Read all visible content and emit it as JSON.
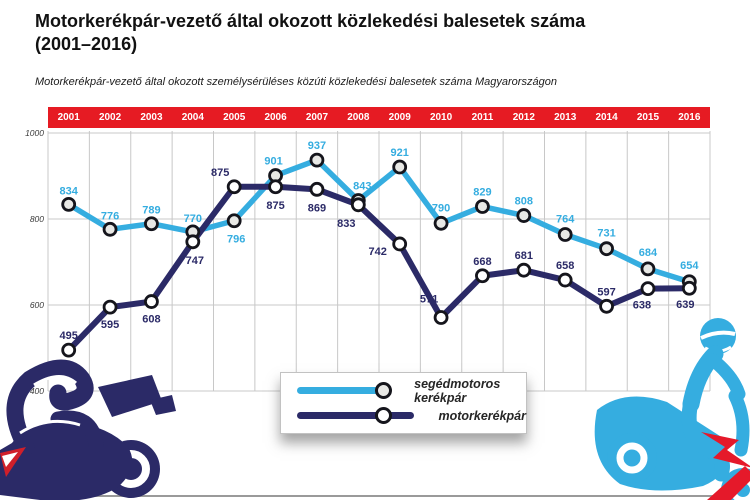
{
  "header": {
    "title_line1": "Motorkerékpár-vezető által okozott közlekedési balesetek száma",
    "title_line2": "(2001–2016)",
    "subtitle": "Motorkerékpár-vezető által okozott személysérüléses közúti közlekedési balesetek száma Magyarországon"
  },
  "chart_data": {
    "type": "line",
    "title": "Motorkerékpár-vezető által okozott közlekedési balesetek száma (2001–2016)",
    "categories": [
      "2001",
      "2002",
      "2003",
      "2004",
      "2005",
      "2006",
      "2007",
      "2008",
      "2009",
      "2010",
      "2011",
      "2012",
      "2013",
      "2014",
      "2015",
      "2016"
    ],
    "series": [
      {
        "name": "segédmotoros kerékpár",
        "color": "#35ade0",
        "marker_fill": "#e8e8e5",
        "line_width": 5.5,
        "values": [
          834,
          776,
          789,
          770,
          796,
          901,
          937,
          843,
          921,
          790,
          829,
          808,
          764,
          731,
          684,
          654
        ],
        "label_offsets": [
          [
            0,
            -10
          ],
          [
            0,
            -10
          ],
          [
            0,
            -10
          ],
          [
            0,
            -10
          ],
          [
            2,
            22
          ],
          [
            -2,
            -11
          ],
          [
            0,
            -11
          ],
          [
            4,
            -11
          ],
          [
            0,
            -11
          ],
          [
            0,
            -12
          ],
          [
            0,
            -11
          ],
          [
            0,
            -11
          ],
          [
            0,
            -12
          ],
          [
            0,
            -12
          ],
          [
            0,
            -13
          ],
          [
            0,
            -13
          ]
        ]
      },
      {
        "name": "motorkerékpár",
        "color": "#2b2a67",
        "marker_fill": "#ffffff",
        "line_width": 6,
        "values": [
          495,
          595,
          608,
          747,
          875,
          875,
          869,
          833,
          742,
          571,
          668,
          681,
          658,
          597,
          638,
          639
        ],
        "label_offsets": [
          [
            0,
            -11
          ],
          [
            0,
            21
          ],
          [
            0,
            21
          ],
          [
            2,
            22
          ],
          [
            -14,
            -11
          ],
          [
            0,
            22
          ],
          [
            0,
            22
          ],
          [
            -12,
            22
          ],
          [
            -22,
            11
          ],
          [
            -12,
            -15
          ],
          [
            0,
            -11
          ],
          [
            0,
            -11
          ],
          [
            0,
            -11
          ],
          [
            0,
            -11
          ],
          [
            -6,
            20
          ],
          [
            -4,
            20
          ]
        ]
      }
    ],
    "ylim": [
      400,
      1000
    ],
    "yticks": [
      1000,
      800,
      600,
      400
    ],
    "grid": true,
    "legend_position": "bottom-center",
    "header_bar_color": "#e61b23",
    "header_text_color": "#ffffff",
    "grid_color": "#c8c8c8",
    "marker_stroke_color": "#15151c"
  },
  "legend": {
    "items": [
      {
        "label": "segédmotoros kerékpár",
        "color": "#35ade0",
        "marker_fill": "#e8e8e5"
      },
      {
        "label": "motorkerékpár",
        "color": "#2b2a67",
        "marker_fill": "#ffffff"
      }
    ]
  }
}
